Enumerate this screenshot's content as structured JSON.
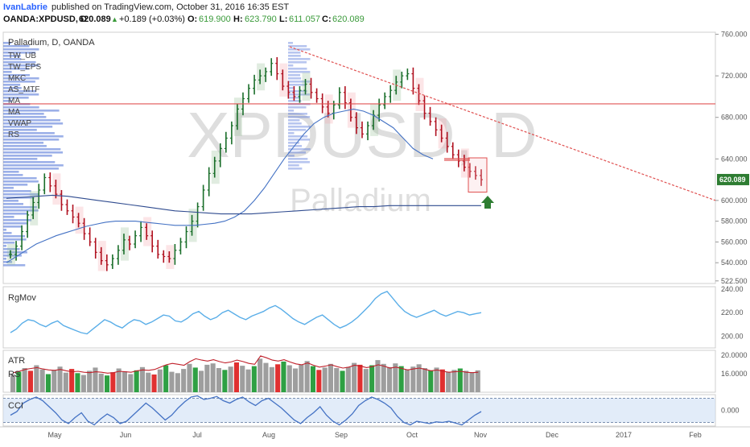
{
  "header": {
    "author": "IvanLabrie",
    "published": "published on TradingView.com, October 31, 2016 16:35 EST",
    "symbol": "OANDA:XPDUSD, D",
    "price": "620.089",
    "change": "+0.189 (+0.03%)",
    "open": "619.900",
    "high": "623.790",
    "low": "611.057",
    "close": "620.089",
    "o_label": "O:",
    "h_label": "H:",
    "l_label": "L:",
    "c_label": "C:"
  },
  "colors": {
    "up": "#26a69a",
    "green_text": "#3a9a3a",
    "down": "#e0465a",
    "blue_line": "#4472c4",
    "rgmov_line": "#5aaee8",
    "trend_line": "#e05050",
    "price_label_bg": "#2e7d32",
    "arrow": "#2e7d32",
    "volume_profile": "#4a6fd6"
  },
  "chart_data": [
    {
      "type": "line",
      "title": "Palladium, D, OANDA",
      "watermark_symbol": "XPDUSD, D",
      "watermark_name": "Palladium",
      "indicator_labels": [
        "TW_UB",
        "TW_EPS",
        "MKC",
        "AS_MTF",
        "MA",
        "MA",
        "VWAP",
        "RS"
      ],
      "y_ticks": [
        "760.000",
        "720.000",
        "680.000",
        "640.000",
        "600.000",
        "580.000",
        "560.000",
        "540.000",
        "522.500"
      ],
      "ylim": [
        520,
        762
      ],
      "x_ticks": [
        "May",
        "Jun",
        "Jul",
        "Aug",
        "Sep",
        "Oct",
        "Nov",
        "Dec",
        "2017",
        "Feb"
      ],
      "last_price_label": "620.089",
      "series": [
        {
          "name": "close",
          "values": [
            548,
            556,
            570,
            586,
            598,
            610,
            622,
            614,
            606,
            596,
            590,
            584,
            578,
            568,
            560,
            550,
            542,
            538,
            544,
            552,
            562,
            558,
            566,
            574,
            566,
            556,
            548,
            546,
            544,
            552,
            560,
            570,
            580,
            594,
            610,
            626,
            638,
            650,
            660,
            672,
            688,
            698,
            708,
            716,
            720,
            724,
            732,
            722,
            710,
            704,
            700,
            706,
            712,
            704,
            698,
            690,
            684,
            692,
            704,
            694,
            680,
            670,
            664,
            672,
            682,
            692,
            700,
            706,
            714,
            720,
            722,
            708,
            696,
            684,
            676,
            668,
            660,
            652,
            644,
            638,
            632,
            628,
            624,
            620
          ]
        },
        {
          "name": "ma_fast",
          "values": [
            540,
            546,
            552,
            558,
            562,
            566,
            569,
            572,
            575,
            577,
            579,
            580,
            580,
            580,
            579,
            578,
            577,
            576,
            576,
            576,
            577,
            578,
            580,
            584,
            590,
            600,
            612,
            626,
            640,
            652,
            664,
            674,
            680,
            684,
            686,
            688,
            686,
            682,
            676,
            670,
            660,
            650,
            644,
            640
          ]
        },
        {
          "name": "ma_slow",
          "values": [
            602,
            603,
            604,
            605,
            604,
            602,
            600,
            598,
            596,
            594,
            592,
            590,
            589,
            588,
            587,
            587,
            587,
            588,
            589,
            590,
            591,
            592,
            593,
            594,
            594,
            595,
            595,
            595,
            595,
            595,
            595,
            595
          ]
        },
        {
          "name": "trend_line",
          "values": [
            748,
            600
          ]
        }
      ]
    },
    {
      "type": "line",
      "title": "RgMov",
      "y_ticks": [
        "240.00",
        "220.00",
        "200.00"
      ],
      "ylim": [
        190,
        242
      ],
      "values": [
        203,
        206,
        211,
        214,
        213,
        210,
        208,
        211,
        213,
        209,
        207,
        205,
        203,
        202,
        206,
        210,
        214,
        212,
        209,
        207,
        211,
        214,
        213,
        210,
        212,
        215,
        218,
        217,
        213,
        212,
        215,
        219,
        221,
        217,
        214,
        216,
        220,
        222,
        219,
        216,
        214,
        217,
        219,
        221,
        224,
        226,
        223,
        219,
        215,
        212,
        210,
        213,
        216,
        218,
        214,
        210,
        207,
        209,
        212,
        216,
        221,
        226,
        232,
        236,
        238,
        232,
        226,
        221,
        218,
        216,
        218,
        220,
        222,
        219,
        217,
        219,
        221,
        220,
        218,
        219,
        220
      ]
    },
    {
      "type": "bar",
      "title": "ATR",
      "second_label": "RS",
      "y_ticks": [
        "20.0000",
        "16.0000"
      ],
      "ylim": [
        12,
        21
      ],
      "values": [
        15.8,
        16.4,
        17.2,
        16.6,
        17.8,
        16.9,
        15.9,
        16.8,
        17.5,
        16.2,
        17.0,
        16.1,
        15.7,
        16.6,
        17.3,
        16.0,
        15.6,
        16.3,
        17.1,
        16.5,
        15.9,
        16.7,
        17.4,
        16.2,
        15.8,
        16.9,
        17.8,
        16.4,
        16.1,
        17.0,
        18.1,
        17.3,
        16.6,
        17.9,
        18.2,
        17.2,
        16.8,
        17.5,
        18.4,
        17.7,
        16.9,
        17.6,
        19.2,
        18.3,
        17.4,
        18.0,
        18.6,
        17.8,
        17.1,
        17.9,
        18.7,
        17.6,
        16.8,
        17.3,
        18.1,
        17.2,
        16.6,
        17.4,
        18.3,
        17.9,
        17.0,
        17.8,
        18.9,
        18.1,
        17.4,
        18.2,
        17.6,
        16.9,
        17.5,
        18.0,
        17.2,
        16.7,
        17.3,
        16.9,
        16.4,
        16.8,
        17.1,
        16.6,
        16.3,
        16.7
      ],
      "atr_line": [
        16.2,
        16.5,
        16.9,
        17.1,
        17.3,
        17.0,
        16.8,
        16.7,
        16.9,
        16.6,
        16.4,
        16.5,
        16.3,
        16.2,
        16.4,
        16.3,
        16.1,
        16.2,
        16.5,
        16.4,
        16.3,
        16.6,
        16.8,
        16.7,
        16.9,
        17.4,
        17.9,
        18.2,
        18.0,
        17.8,
        18.6,
        19.2,
        18.9,
        18.7,
        19.0,
        18.6,
        18.3,
        18.5,
        18.9,
        18.6,
        18.2,
        18.0,
        19.8,
        19.4,
        18.9,
        18.7,
        19.0,
        18.5,
        18.1,
        17.9,
        18.3,
        17.8,
        17.4,
        17.6,
        17.9,
        17.5,
        17.2,
        17.4,
        17.8,
        17.6,
        17.3,
        17.5,
        17.9,
        17.6,
        17.2,
        17.4,
        17.1,
        16.8,
        17.0,
        17.2,
        16.9,
        16.6,
        16.8,
        16.5,
        16.3,
        16.4,
        16.5,
        16.3,
        16.2,
        16.3
      ]
    },
    {
      "type": "area",
      "title": "CCI",
      "y_ticks": [
        "0.000"
      ],
      "ylim": [
        -130,
        130
      ],
      "upper_band": 100,
      "lower_band": -100,
      "values": [
        -40,
        -10,
        60,
        90,
        110,
        80,
        30,
        -20,
        -80,
        -110,
        -60,
        -20,
        -90,
        -120,
        -70,
        -30,
        -60,
        -110,
        -90,
        -40,
        10,
        60,
        20,
        -30,
        -80,
        -40,
        20,
        70,
        110,
        120,
        90,
        100,
        115,
        80,
        60,
        90,
        110,
        70,
        40,
        80,
        100,
        60,
        20,
        -30,
        -80,
        -110,
        -60,
        -20,
        30,
        -40,
        -90,
        -120,
        -80,
        -30,
        40,
        80,
        110,
        90,
        60,
        20,
        -50,
        -100,
        -120,
        -90,
        -100,
        -110,
        -95,
        -100,
        -90,
        -105,
        -120,
        -80,
        -40,
        -10
      ]
    }
  ]
}
